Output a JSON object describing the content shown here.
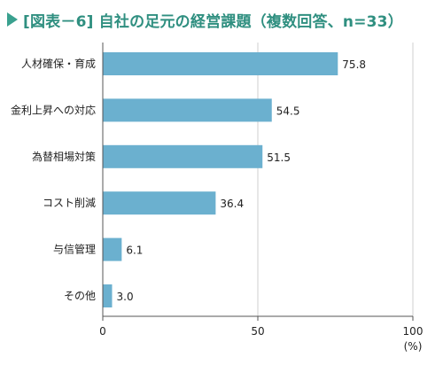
{
  "title": "[図表－6] 自社の足元の経営課題（複数回答、n=33）",
  "colors": {
    "title": "#2f8f80",
    "marker": "#3aa18f",
    "bar": "#6bb0cf",
    "axis": "#555555",
    "grid": "#cfcfcf"
  },
  "chart_data": {
    "type": "bar",
    "orientation": "horizontal",
    "categories": [
      "人材確保・育成",
      "金利上昇への対応",
      "為替相場対策",
      "コスト削減",
      "与信管理",
      "その他"
    ],
    "values": [
      75.8,
      54.5,
      51.5,
      36.4,
      6.1,
      3.0
    ],
    "value_labels": [
      "75.8",
      "54.5",
      "51.5",
      "36.4",
      "6.1",
      "3.0"
    ],
    "xlim": [
      0,
      100
    ],
    "xticks": [
      0,
      50,
      100
    ],
    "xtick_labels": [
      "0",
      "50",
      "100"
    ],
    "x_unit_label": "(%)",
    "grid": "vertical"
  }
}
